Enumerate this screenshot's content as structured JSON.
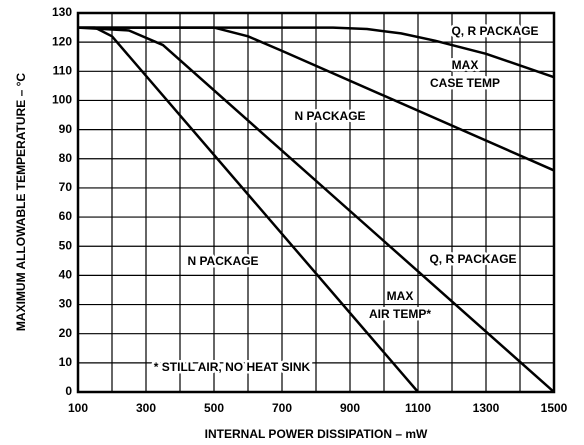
{
  "chart_data": {
    "type": "line",
    "xlabel": "INTERNAL POWER DISSIPATION – mW",
    "ylabel": "MAXIMUM ALLOWABLE TEMPERATURE – °C",
    "xlim": [
      100,
      1500
    ],
    "xticks": [
      100,
      300,
      500,
      700,
      900,
      1100,
      1300,
      1500
    ],
    "xgrid": [
      100,
      200,
      300,
      400,
      500,
      600,
      700,
      800,
      900,
      1000,
      1100,
      1200,
      1300,
      1400,
      1500
    ],
    "ylim": [
      0,
      130
    ],
    "yticks": [
      0,
      10,
      20,
      30,
      40,
      50,
      60,
      70,
      80,
      90,
      100,
      110,
      120,
      130
    ],
    "grid": true,
    "color": "#000000",
    "series": [
      {
        "x": [
          100,
          850,
          950,
          1050,
          1150,
          1300,
          1500
        ],
        "values": [
          125,
          125,
          124.5,
          123,
          120.5,
          116,
          108
        ]
      },
      {
        "x": [
          100,
          500,
          600,
          700,
          1500
        ],
        "values": [
          125,
          125,
          122,
          117,
          76
        ]
      },
      {
        "x": [
          100,
          250,
          350,
          1500
        ],
        "values": [
          125,
          124,
          119,
          0
        ]
      },
      {
        "x": [
          100,
          150,
          200,
          1100
        ],
        "values": [
          125,
          125,
          122,
          0
        ]
      }
    ],
    "annotations": [
      [
        "Q, R PACKAGE"
      ],
      [
        "MAX",
        "CASE TEMP"
      ],
      [
        "N PACKAGE"
      ],
      [
        "Q, R PACKAGE"
      ],
      [
        "N PACKAGE"
      ],
      [
        "MAX",
        "AIR TEMP*"
      ],
      [
        "* STILL AIR, NO HEAT SINK"
      ]
    ]
  }
}
